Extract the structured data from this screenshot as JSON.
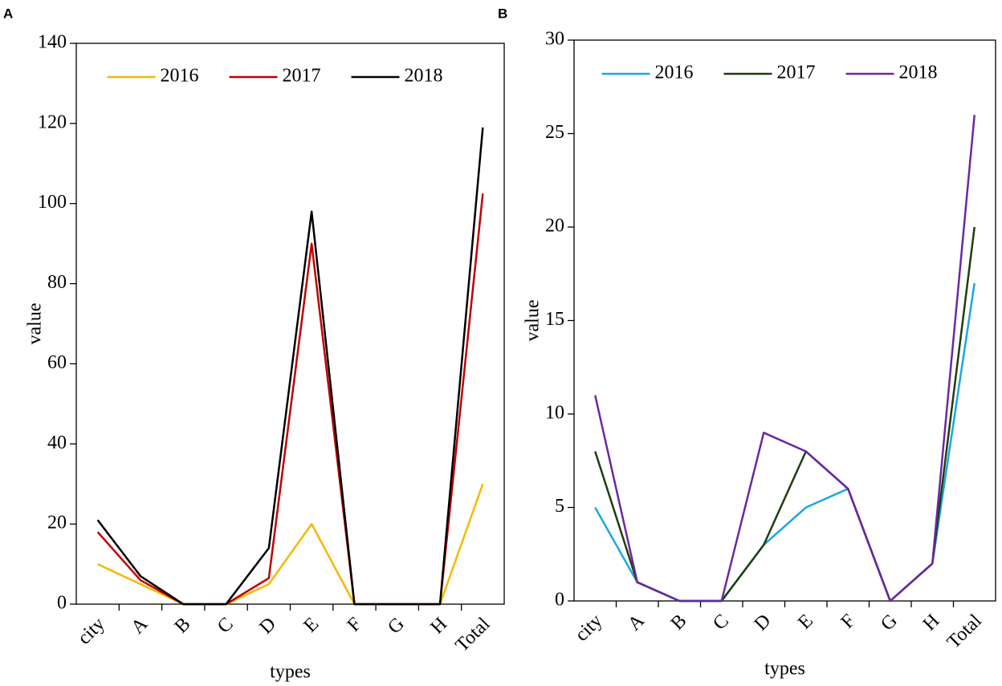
{
  "chart_data": [
    {
      "type": "line",
      "panel": "A",
      "xlabel": "types",
      "ylabel": "value",
      "categories": [
        "city",
        "A",
        "B",
        "C",
        "D",
        "E",
        "F",
        "G",
        "H",
        "Total"
      ],
      "series": [
        {
          "name": "2016",
          "color": "#f5b800",
          "values": [
            10,
            5,
            0,
            0,
            5,
            20,
            0,
            0,
            0,
            30
          ]
        },
        {
          "name": "2017",
          "color": "#c00000",
          "values": [
            18,
            6,
            0,
            0,
            6.5,
            90,
            0,
            0,
            0,
            102.5
          ]
        },
        {
          "name": "2018",
          "color": "#000000",
          "values": [
            21,
            7,
            0,
            0,
            14,
            98,
            0,
            0,
            0,
            119
          ]
        }
      ],
      "ylim": [
        0,
        140
      ],
      "yticks": [
        0,
        20,
        40,
        60,
        80,
        100,
        120,
        140
      ],
      "legend": "upper center"
    },
    {
      "type": "line",
      "panel": "B",
      "xlabel": "types",
      "ylabel": "value",
      "categories": [
        "city",
        "A",
        "B",
        "C",
        "D",
        "E",
        "F",
        "G",
        "H",
        "Total"
      ],
      "series": [
        {
          "name": "2016",
          "color": "#1aa7e0",
          "values": [
            5,
            1,
            0,
            0,
            3,
            5,
            6,
            0,
            2,
            17
          ]
        },
        {
          "name": "2017",
          "color": "#1e3d10",
          "values": [
            8,
            1,
            0,
            0,
            3,
            8,
            6,
            0,
            2,
            20
          ]
        },
        {
          "name": "2018",
          "color": "#6a28a0",
          "values": [
            11,
            1,
            0,
            0,
            9,
            8,
            6,
            0,
            2,
            26
          ]
        }
      ],
      "ylim": [
        0,
        30
      ],
      "yticks": [
        0,
        5,
        10,
        15,
        20,
        25,
        30
      ],
      "legend": "upper center"
    }
  ]
}
